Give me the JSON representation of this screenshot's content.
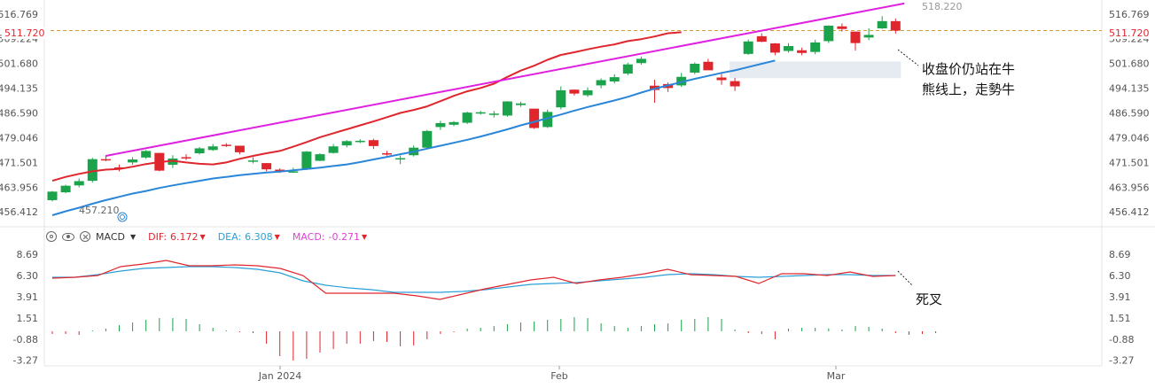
{
  "price_axis": {
    "ticks": [
      "516.769",
      "509.224",
      "501.680",
      "494.135",
      "486.590",
      "479.046",
      "471.501",
      "463.956",
      "456.412"
    ],
    "current_price": "511.720",
    "high_label": "518.220",
    "low_label": "457.210"
  },
  "macd_legend": {
    "name": "MACD",
    "dif_label": "DIF:",
    "dif_value": "6.172",
    "dea_label": "DEA:",
    "dea_value": "6.308",
    "macd_label": "MACD:",
    "macd_value": "-0.271"
  },
  "macd_axis": {
    "ticks": [
      "8.69",
      "6.30",
      "3.91",
      "1.51",
      "-0.88",
      "-3.27"
    ]
  },
  "time_axis": [
    "Jan 2024",
    "Feb",
    "Mar"
  ],
  "annotations": {
    "bull": [
      "收盘价仍站在牛",
      "熊线上，走勢牛"
    ],
    "dead_cross": "死叉"
  },
  "colors": {
    "up": "#1aa34a",
    "down": "#e0262d",
    "trendline": "#e020e0",
    "ma_red": "#e0262d",
    "ma_blue": "#2a86d8",
    "dif": "#e0262d",
    "dea": "#2aa0d8",
    "macd": "#e040d8"
  },
  "chart_data": [
    {
      "type": "candlestick",
      "title": "",
      "ylim": [
        453.5,
        520.5
      ],
      "candles": [
        [
          460.0,
          462.8,
          459.6,
          462.6
        ],
        [
          462.4,
          464.7,
          462.1,
          464.4
        ],
        [
          464.5,
          466.6,
          463.9,
          465.8
        ],
        [
          465.9,
          472.9,
          465.4,
          472.5
        ],
        [
          472.5,
          473.7,
          471.9,
          472.2
        ],
        [
          470.0,
          470.9,
          468.8,
          469.6
        ],
        [
          471.5,
          473.1,
          470.8,
          472.4
        ],
        [
          473.0,
          475.3,
          472.6,
          475.0
        ],
        [
          474.4,
          474.4,
          468.8,
          469.0
        ],
        [
          470.8,
          473.7,
          469.8,
          472.7
        ],
        [
          473.1,
          474.0,
          472.2,
          473.0
        ],
        [
          474.3,
          476.2,
          473.9,
          475.8
        ],
        [
          475.3,
          477.1,
          475.0,
          476.4
        ],
        [
          476.9,
          477.4,
          476.2,
          476.6
        ],
        [
          476.6,
          476.6,
          474.0,
          474.6
        ],
        [
          472.0,
          473.1,
          471.2,
          472.1
        ],
        [
          471.3,
          471.3,
          468.8,
          469.4
        ],
        [
          469.3,
          469.7,
          468.3,
          469.0
        ],
        [
          468.8,
          469.9,
          468.3,
          468.8
        ],
        [
          469.4,
          475.0,
          469.2,
          474.8
        ],
        [
          472.0,
          474.3,
          471.9,
          474.0
        ],
        [
          474.4,
          477.1,
          474.2,
          476.4
        ],
        [
          476.7,
          478.3,
          476.1,
          478.0
        ],
        [
          478.0,
          478.6,
          477.4,
          478.1
        ],
        [
          478.3,
          478.7,
          475.6,
          476.5
        ],
        [
          474.3,
          475.0,
          473.6,
          474.0
        ],
        [
          472.4,
          473.6,
          471.0,
          472.8
        ],
        [
          473.7,
          476.7,
          473.3,
          476.0
        ],
        [
          476.0,
          481.4,
          475.9,
          481.1
        ],
        [
          482.3,
          484.2,
          481.4,
          483.5
        ],
        [
          483.0,
          484.1,
          482.5,
          483.8
        ],
        [
          483.6,
          487.0,
          483.2,
          486.7
        ],
        [
          486.4,
          487.2,
          486.1,
          486.8
        ],
        [
          486.1,
          487.2,
          485.2,
          486.4
        ],
        [
          485.8,
          490.2,
          485.4,
          490.1
        ],
        [
          489.0,
          490.0,
          488.5,
          489.5
        ],
        [
          487.9,
          487.9,
          481.7,
          482.0
        ],
        [
          482.3,
          487.6,
          482.0,
          486.9
        ],
        [
          488.3,
          494.7,
          487.7,
          493.5
        ],
        [
          493.7,
          493.7,
          491.9,
          492.5
        ],
        [
          492.0,
          494.4,
          491.5,
          493.5
        ],
        [
          495.0,
          497.1,
          494.1,
          496.6
        ],
        [
          496.2,
          498.4,
          495.6,
          497.5
        ],
        [
          498.6,
          501.9,
          498.1,
          501.4
        ],
        [
          501.8,
          503.8,
          501.3,
          503.1
        ],
        [
          494.9,
          496.7,
          489.7,
          493.6
        ],
        [
          495.4,
          495.9,
          493.0,
          494.2
        ],
        [
          495.0,
          498.8,
          494.5,
          497.6
        ],
        [
          498.9,
          502.0,
          498.4,
          501.6
        ],
        [
          502.2,
          503.1,
          499.9,
          499.6
        ],
        [
          497.4,
          498.5,
          495.2,
          496.6
        ],
        [
          496.3,
          497.3,
          493.3,
          494.7
        ],
        [
          504.6,
          509.0,
          504.3,
          508.4
        ],
        [
          510.0,
          510.9,
          508.2,
          508.3
        ],
        [
          507.8,
          507.9,
          504.2,
          505.0
        ],
        [
          505.5,
          507.9,
          505.0,
          507.0
        ],
        [
          505.7,
          506.5,
          504.2,
          504.9
        ],
        [
          505.2,
          508.9,
          504.5,
          508.1
        ],
        [
          508.5,
          513.3,
          507.9,
          513.2
        ],
        [
          513.0,
          513.9,
          511.4,
          512.2
        ],
        [
          511.4,
          511.4,
          505.6,
          507.9
        ],
        [
          509.6,
          512.4,
          508.8,
          510.4
        ],
        [
          512.4,
          516.1,
          512.2,
          514.6
        ],
        [
          514.6,
          515.4,
          510.8,
          511.7
        ]
      ],
      "ma_red": [
        465.9,
        467.1,
        468.0,
        468.8,
        469.3,
        469.5,
        470.2,
        471.0,
        471.6,
        472.0,
        471.5,
        471.1,
        470.9,
        471.5,
        472.6,
        473.5,
        474.3,
        475.0,
        476.3,
        477.7,
        479.2,
        480.4,
        481.6,
        482.8,
        484.0,
        485.3,
        486.6,
        487.5,
        488.6,
        490.2,
        491.8,
        493.2,
        494.2,
        495.5,
        497.6,
        499.5,
        501.0,
        502.8,
        504.3,
        505.1,
        506.0,
        506.8,
        507.5,
        508.5,
        509.1,
        509.9,
        510.9,
        511.2
      ],
      "ma_blue": [
        455.4,
        456.6,
        457.7,
        458.9,
        460.0,
        461.0,
        462.0,
        462.8,
        463.7,
        464.5,
        465.2,
        465.9,
        466.6,
        467.1,
        467.6,
        468.0,
        468.4,
        468.7,
        469.1,
        469.5,
        469.9,
        470.4,
        470.9,
        471.6,
        472.4,
        473.2,
        474.0,
        474.8,
        475.7,
        476.6,
        477.5,
        478.4,
        479.4,
        480.5,
        481.6,
        482.8,
        483.9,
        485.0,
        486.1,
        487.3,
        488.4,
        489.4,
        490.4,
        491.5,
        492.8,
        494.0,
        495.0,
        496.0,
        497.0,
        497.9,
        498.8,
        499.6,
        500.6,
        501.6,
        502.6
      ],
      "trendline": [
        [
          4,
          473.5
        ],
        [
          63,
          520.0
        ]
      ],
      "highlight": {
        "x0": 51,
        "x1": 63,
        "y0": 497.2,
        "y1": 502.3
      }
    },
    {
      "type": "macd",
      "title": "",
      "ylim": [
        -3.9,
        9.6
      ],
      "dif": [
        6.0,
        6.1,
        6.3,
        7.3,
        7.6,
        8.0,
        7.4,
        7.4,
        7.5,
        7.4,
        7.1,
        6.3,
        4.3,
        4.3,
        4.3,
        4.3,
        4.0,
        3.6,
        4.2,
        4.8,
        5.3,
        5.8,
        6.1,
        5.4,
        5.8,
        6.1,
        6.5,
        7.0,
        6.4,
        6.3,
        6.2,
        5.4,
        6.5,
        6.5,
        6.3,
        6.7,
        6.2,
        6.3
      ],
      "dea": [
        6.1,
        6.1,
        6.4,
        6.8,
        7.1,
        7.2,
        7.3,
        7.3,
        7.2,
        7.0,
        6.6,
        5.7,
        5.2,
        4.9,
        4.7,
        4.4,
        4.4,
        4.4,
        4.5,
        4.7,
        5.0,
        5.3,
        5.4,
        5.5,
        5.7,
        5.9,
        6.1,
        6.4,
        6.5,
        6.4,
        6.2,
        6.1,
        6.2,
        6.3,
        6.4,
        6.4,
        6.3,
        6.3
      ],
      "histogram": [
        -0.3,
        -0.3,
        -0.4,
        0.1,
        0.3,
        0.7,
        1.0,
        1.3,
        1.5,
        1.5,
        1.4,
        0.8,
        0.4,
        0.1,
        -0.1,
        -0.2,
        -1.4,
        -2.8,
        -3.3,
        -3.1,
        -2.4,
        -2.0,
        -1.4,
        -1.4,
        -1.1,
        -1.2,
        -1.7,
        -1.6,
        -0.9,
        -0.3,
        -0.1,
        0.3,
        0.4,
        0.6,
        0.8,
        1.0,
        1.1,
        1.3,
        1.4,
        1.6,
        1.5,
        0.9,
        0.6,
        0.4,
        0.6,
        0.8,
        0.9,
        1.3,
        1.4,
        1.6,
        1.4,
        0.2,
        -0.2,
        -0.3,
        -0.9,
        0.3,
        0.4,
        0.4,
        0.3,
        0.2,
        0.6,
        0.5,
        0.3,
        -0.2,
        -0.4,
        -0.3,
        -0.2
      ]
    }
  ]
}
